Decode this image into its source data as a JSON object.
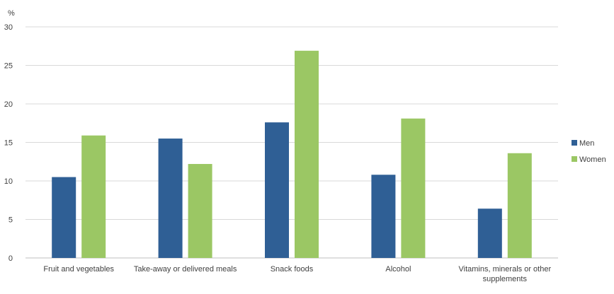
{
  "chart_data": {
    "type": "bar",
    "title": "",
    "xlabel": "",
    "ylabel": "%",
    "ylim": [
      0,
      30
    ],
    "yticks": [
      0,
      5,
      10,
      15,
      20,
      25,
      30
    ],
    "grid": true,
    "legend_position": "right",
    "categories": [
      "Fruit and vegetables",
      "Take-away or delivered meals",
      "Snack foods",
      "Alcohol",
      "Vitamins, minerals or other supplements"
    ],
    "series": [
      {
        "name": "Men",
        "color": "#2f5f95",
        "values": [
          10.5,
          15.5,
          17.6,
          10.8,
          6.4
        ]
      },
      {
        "name": "Women",
        "color": "#9bc764",
        "values": [
          15.9,
          12.2,
          26.9,
          18.1,
          13.6
        ]
      }
    ]
  }
}
